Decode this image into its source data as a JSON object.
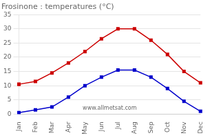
{
  "chart_data": {
    "type": "line",
    "title": "Frosinone : temperatures (°C)",
    "categories": [
      "Jan",
      "Feb",
      "Mar",
      "Apr",
      "May",
      "Jun",
      "Jul",
      "Aug",
      "Sep",
      "Oct",
      "Nov",
      "Dec"
    ],
    "series": [
      {
        "color": "#cc0000",
        "marker": "square",
        "values": [
          10.5,
          11.5,
          14.5,
          18.0,
          22.0,
          26.5,
          30.0,
          30.0,
          26.0,
          21.0,
          15.0,
          11.0
        ]
      },
      {
        "color": "#0000cc",
        "marker": "square",
        "values": [
          0.5,
          1.5,
          2.5,
          6.0,
          10.0,
          13.0,
          15.5,
          15.5,
          13.0,
          9.0,
          4.5,
          1.0
        ]
      }
    ],
    "ylim": [
      0,
      35
    ],
    "yticks": [
      0,
      5,
      10,
      15,
      20,
      25,
      30,
      35
    ],
    "grid": "y",
    "annotation": "www.allmetsat.com"
  }
}
